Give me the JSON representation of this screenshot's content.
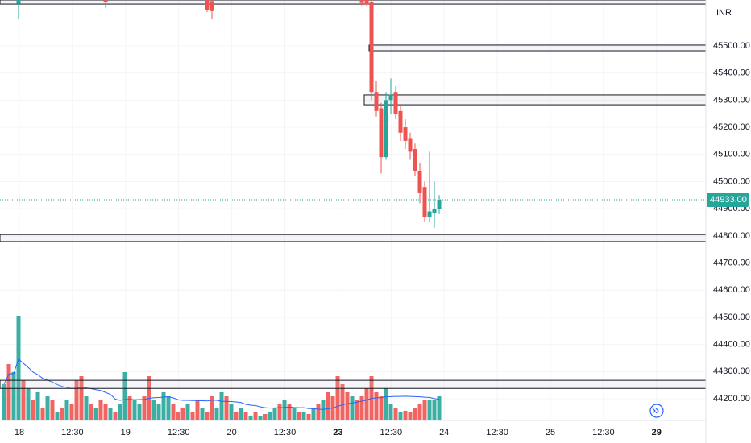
{
  "chart_data": {
    "type": "candlestick",
    "currency": "INR",
    "last_price": {
      "value": 44933,
      "label": "44933.00"
    },
    "ylim": [
      44120,
      45669
    ],
    "yticks": [
      {
        "value": 44200,
        "label": "44200.00"
      },
      {
        "value": 44300,
        "label": "44300.00"
      },
      {
        "value": 44400,
        "label": "44400.00"
      },
      {
        "value": 44500,
        "label": "44500.00"
      },
      {
        "value": 44600,
        "label": "44600.00"
      },
      {
        "value": 44700,
        "label": "44700.00"
      },
      {
        "value": 44800,
        "label": "44800.00"
      },
      {
        "value": 44900,
        "label": "44900.00"
      },
      {
        "value": 45000,
        "label": "45000.00"
      },
      {
        "value": 45100,
        "label": "45100.00"
      },
      {
        "value": 45200,
        "label": "45200.00"
      },
      {
        "value": 45300,
        "label": "45300.00"
      },
      {
        "value": 45400,
        "label": "45400.00"
      },
      {
        "value": 45500,
        "label": "45500.00"
      }
    ],
    "time_labels": [
      "18",
      "12:30",
      "19",
      "12:30",
      "20",
      "12:30",
      "23",
      "12:30",
      "24",
      "12:30",
      "25",
      "12:30",
      "29"
    ],
    "grid": true,
    "up_color": "#26a69a",
    "down_color": "#ef5350",
    "candles": [
      {
        "x": 3,
        "open": 45655,
        "high": 45669,
        "low": 45600,
        "close": 45669
      },
      {
        "x": 21,
        "open": 45669,
        "high": 45669,
        "low": 45640,
        "close": 45662
      },
      {
        "x": 42,
        "open": 45669,
        "high": 45669,
        "low": 45625,
        "close": 45632
      },
      {
        "x": 43,
        "open": 45665,
        "high": 45669,
        "low": 45600,
        "close": 45628
      },
      {
        "x": 74,
        "open": 45669,
        "high": 45669,
        "low": 45650,
        "close": 45658
      },
      {
        "x": 75,
        "open": 45669,
        "high": 45669,
        "low": 45645,
        "close": 45652
      },
      {
        "x": 76,
        "open": 45660,
        "high": 45669,
        "low": 45300,
        "close": 45330
      },
      {
        "x": 77,
        "open": 45330,
        "high": 45370,
        "low": 45240,
        "close": 45260
      },
      {
        "x": 78,
        "open": 45270,
        "high": 45290,
        "low": 45030,
        "close": 45090
      },
      {
        "x": 79,
        "open": 45090,
        "high": 45330,
        "low": 45080,
        "close": 45300
      },
      {
        "x": 80,
        "open": 45300,
        "high": 45380,
        "low": 45250,
        "close": 45320
      },
      {
        "x": 81,
        "open": 45330,
        "high": 45350,
        "low": 45230,
        "close": 45250
      },
      {
        "x": 82,
        "open": 45260,
        "high": 45280,
        "low": 45150,
        "close": 45180
      },
      {
        "x": 83,
        "open": 45200,
        "high": 45230,
        "low": 45120,
        "close": 45150
      },
      {
        "x": 84,
        "open": 45160,
        "high": 45180,
        "low": 45080,
        "close": 45110
      },
      {
        "x": 85,
        "open": 45120,
        "high": 45140,
        "low": 45020,
        "close": 45040
      },
      {
        "x": 86,
        "open": 45040,
        "high": 45070,
        "low": 44920,
        "close": 44960
      },
      {
        "x": 87,
        "open": 44980,
        "high": 45000,
        "low": 44850,
        "close": 44870
      },
      {
        "x": 88,
        "open": 44870,
        "high": 45110,
        "low": 44850,
        "close": 44890
      },
      {
        "x": 89,
        "open": 44885,
        "high": 45000,
        "low": 44830,
        "close": 44900
      },
      {
        "x": 90,
        "open": 44900,
        "high": 44950,
        "low": 44880,
        "close": 44933
      }
    ],
    "zones": [
      {
        "low": 45654,
        "high": 45669,
        "start": 0
      },
      {
        "low": 45482,
        "high": 45503,
        "start": 76
      },
      {
        "low": 45283,
        "high": 45319,
        "start": 75
      },
      {
        "low": 44779,
        "high": 44805,
        "start": 0
      },
      {
        "low": 44238,
        "high": 44268,
        "start": 0
      }
    ],
    "volume": {
      "vlim": [
        0,
        130
      ],
      "ma_period": 20,
      "ma_color": "#2962ff",
      "values": [
        45,
        70,
        60,
        130,
        50,
        40,
        25,
        35,
        15,
        30,
        25,
        10,
        15,
        25,
        20,
        50,
        55,
        30,
        20,
        15,
        25,
        20,
        15,
        10,
        20,
        60,
        30,
        25,
        20,
        30,
        55,
        25,
        20,
        35,
        30,
        20,
        10,
        15,
        20,
        10,
        25,
        15,
        10,
        30,
        15,
        35,
        30,
        20,
        10,
        15,
        10,
        5,
        10,
        5,
        8,
        10,
        15,
        20,
        25,
        20,
        15,
        10,
        10,
        8,
        15,
        20,
        25,
        35,
        30,
        55,
        45,
        35,
        30,
        25,
        30,
        40,
        55,
        35,
        30,
        40,
        20,
        15,
        10,
        12,
        10,
        15,
        20,
        25,
        25,
        25,
        30
      ],
      "up": [
        1,
        0,
        1,
        1,
        0,
        1,
        0,
        1,
        0,
        1,
        0,
        1,
        0,
        1,
        0,
        0,
        0,
        1,
        0,
        1,
        0,
        0,
        1,
        0,
        1,
        1,
        0,
        1,
        1,
        0,
        0,
        1,
        1,
        1,
        1,
        0,
        0,
        0,
        1,
        0,
        0,
        1,
        0,
        0,
        1,
        1,
        0,
        1,
        0,
        1,
        0,
        1,
        0,
        1,
        0,
        1,
        1,
        0,
        1,
        0,
        1,
        0,
        1,
        0,
        1,
        0,
        1,
        0,
        0,
        0,
        0,
        0,
        1,
        0,
        0,
        0,
        0,
        0,
        0,
        1,
        1,
        0,
        1,
        0,
        0,
        0,
        0,
        0,
        1,
        1,
        1
      ]
    }
  }
}
